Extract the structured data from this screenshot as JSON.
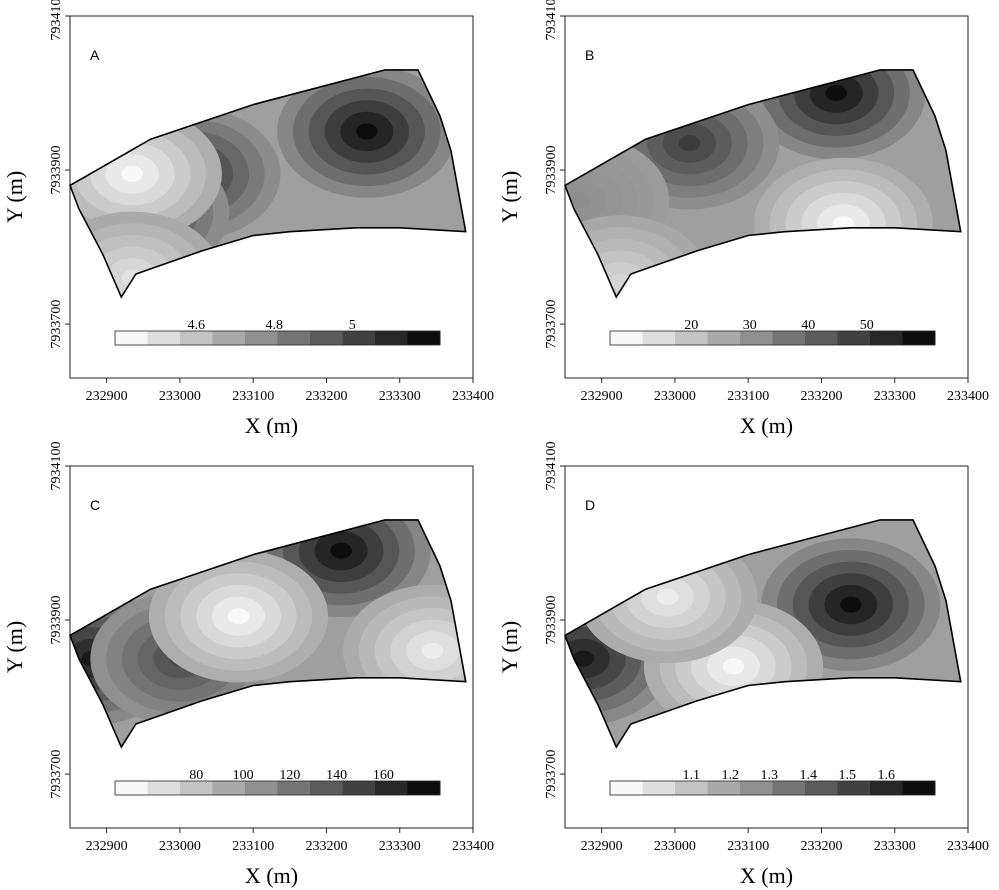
{
  "figure": {
    "xlabel": "X (m)",
    "ylabel": "Y (m)",
    "x_ticks": [
      "232900",
      "233000",
      "233100",
      "233200",
      "233300",
      "233400"
    ],
    "y_ticks": [
      "7933700",
      "7933900",
      "7934100"
    ],
    "shading": {
      "low": "#ffffff",
      "high": "#0d0d0d",
      "boundary": "#000000"
    }
  },
  "panels": [
    {
      "letter": "A",
      "legend_labels": [
        "4.6",
        "4.8",
        "5"
      ],
      "legend_steps": 10,
      "hotspots": [
        {
          "x": 233255,
          "y": 7933950,
          "level": 1.0
        },
        {
          "x": 233015,
          "y": 7933895,
          "level": 0.85
        },
        {
          "x": 232945,
          "y": 7933845,
          "level": 0.85
        },
        {
          "x": 232935,
          "y": 7933895,
          "level": 0.0
        },
        {
          "x": 232935,
          "y": 7933760,
          "level": 0.1
        }
      ]
    },
    {
      "letter": "B",
      "legend_labels": [
        "20",
        "30",
        "40",
        "50"
      ],
      "legend_steps": 10,
      "hotspots": [
        {
          "x": 233220,
          "y": 7934000,
          "level": 1.0
        },
        {
          "x": 233020,
          "y": 7933935,
          "level": 0.8
        },
        {
          "x": 232870,
          "y": 7933860,
          "level": 0.45
        },
        {
          "x": 233230,
          "y": 7933830,
          "level": 0.0
        },
        {
          "x": 232925,
          "y": 7933755,
          "level": 0.15
        }
      ]
    },
    {
      "letter": "C",
      "legend_labels": [
        "80",
        "100",
        "120",
        "140",
        "160"
      ],
      "legend_steps": 10,
      "hotspots": [
        {
          "x": 233220,
          "y": 7933990,
          "level": 1.0
        },
        {
          "x": 232880,
          "y": 7933850,
          "level": 0.95
        },
        {
          "x": 233000,
          "y": 7933850,
          "level": 0.75
        },
        {
          "x": 233080,
          "y": 7933905,
          "level": 0.0
        },
        {
          "x": 233345,
          "y": 7933860,
          "level": 0.05
        }
      ]
    },
    {
      "letter": "D",
      "legend_labels": [
        "1.1",
        "1.2",
        "1.3",
        "1.4",
        "1.5",
        "1.6"
      ],
      "legend_steps": 10,
      "hotspots": [
        {
          "x": 233240,
          "y": 7933920,
          "level": 1.0
        },
        {
          "x": 232875,
          "y": 7933850,
          "level": 0.95
        },
        {
          "x": 233080,
          "y": 7933840,
          "level": 0.0
        },
        {
          "x": 232990,
          "y": 7933930,
          "level": 0.05
        }
      ]
    }
  ]
}
